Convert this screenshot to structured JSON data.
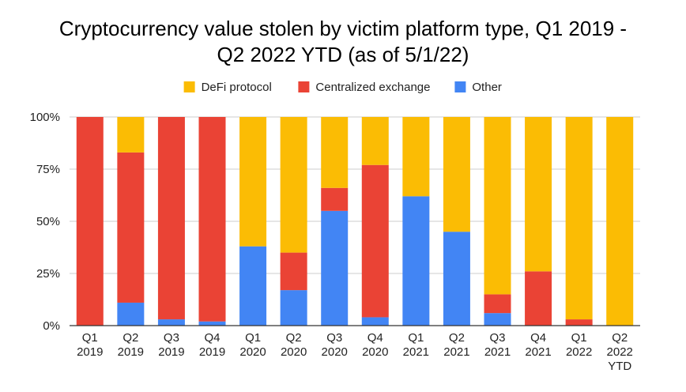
{
  "chart_data": {
    "type": "bar",
    "stacked": true,
    "normalized": true,
    "title_lines": [
      "Cryptocurrency value stolen by victim platform type, Q1 2019 -",
      "Q2 2022 YTD (as of 5/1/22)"
    ],
    "categories": [
      [
        "Q1",
        "2019"
      ],
      [
        "Q2",
        "2019"
      ],
      [
        "Q3",
        "2019"
      ],
      [
        "Q4",
        "2019"
      ],
      [
        "Q1",
        "2020"
      ],
      [
        "Q2",
        "2020"
      ],
      [
        "Q3",
        "2020"
      ],
      [
        "Q4",
        "2020"
      ],
      [
        "Q1",
        "2021"
      ],
      [
        "Q2",
        "2021"
      ],
      [
        "Q3",
        "2021"
      ],
      [
        "Q4",
        "2021"
      ],
      [
        "Q1",
        "2022"
      ],
      [
        "Q2",
        "2022",
        "YTD"
      ]
    ],
    "series": [
      {
        "name": "Other",
        "color": "#4285F4",
        "values": [
          0,
          11,
          3,
          2,
          38,
          17,
          55,
          4,
          62,
          45,
          6,
          0,
          0,
          0
        ]
      },
      {
        "name": "Centralized exchange",
        "color": "#EA4335",
        "values": [
          100,
          72,
          97,
          98,
          0,
          18,
          11,
          73,
          0,
          0,
          9,
          26,
          3,
          0
        ]
      },
      {
        "name": "DeFi protocol",
        "color": "#FBBC04",
        "values": [
          0,
          17,
          0,
          0,
          62,
          65,
          34,
          23,
          38,
          55,
          85,
          74,
          97,
          100
        ]
      }
    ],
    "legend_order": [
      "DeFi protocol",
      "Centralized exchange",
      "Other"
    ],
    "legend_position": "top",
    "y_ticks": [
      "0%",
      "25%",
      "50%",
      "75%",
      "100%"
    ],
    "ylim": [
      0,
      100
    ],
    "grid": true
  }
}
